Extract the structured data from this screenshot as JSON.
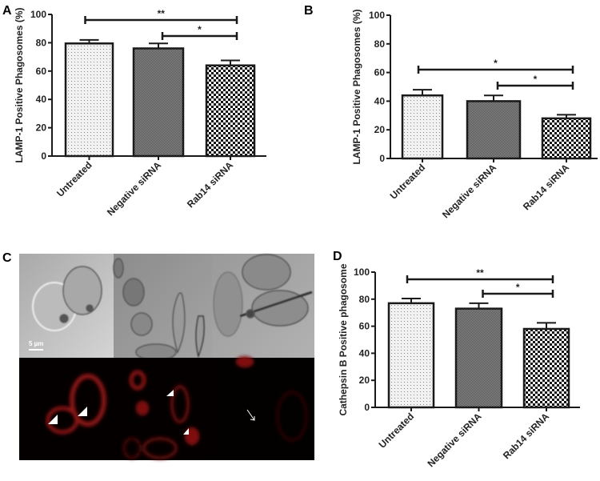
{
  "panels": {
    "A": {
      "label": "A"
    },
    "B": {
      "label": "B"
    },
    "C": {
      "label": "C",
      "scale_bar": "5 µm"
    },
    "D": {
      "label": "D"
    }
  },
  "chart_data": [
    {
      "panel": "A",
      "type": "bar",
      "ylabel": "LAMP-1 Positive Phagosomes (%)",
      "categories": [
        "Untreated",
        "Negative siRNA",
        "Rab14 siRNA"
      ],
      "values": [
        79.5,
        76,
        64
      ],
      "errors": [
        2.5,
        3.5,
        3.5
      ],
      "ylim": [
        0,
        100
      ],
      "yticks": [
        "0",
        "20",
        "40",
        "60",
        "80",
        "100"
      ],
      "significance": [
        {
          "from": 0,
          "to": 2,
          "label": "**"
        },
        {
          "from": 1,
          "to": 2,
          "label": "*"
        }
      ]
    },
    {
      "panel": "B",
      "type": "bar",
      "ylabel": "LAMP-1 Positive Phagosomes (%)",
      "categories": [
        "Untreated",
        "Negative siRNA",
        "Rab14 siRNA"
      ],
      "values": [
        44,
        40,
        28
      ],
      "errors": [
        4,
        4,
        2.5
      ],
      "ylim": [
        0,
        100
      ],
      "yticks": [
        "0",
        "20",
        "40",
        "60",
        "80",
        "100"
      ],
      "significance": [
        {
          "from": 0,
          "to": 2,
          "label": "*"
        },
        {
          "from": 1,
          "to": 2,
          "label": "*"
        }
      ]
    },
    {
      "panel": "D",
      "type": "bar",
      "ylabel": "Cathepsin B Positive phagosome",
      "categories": [
        "Untreated",
        "Negative siRNA",
        "Rab14 siRNA"
      ],
      "values": [
        77,
        73,
        58
      ],
      "errors": [
        3.5,
        4,
        4.5
      ],
      "ylim": [
        0,
        100
      ],
      "yticks": [
        "0",
        "20",
        "40",
        "60",
        "80",
        "100"
      ],
      "significance": [
        {
          "from": 0,
          "to": 2,
          "label": "**"
        },
        {
          "from": 1,
          "to": 2,
          "label": "*"
        }
      ]
    }
  ],
  "colors": {
    "fluorescence": "#b01818",
    "background": "#ffffff",
    "ink": "#1a1a1a"
  }
}
